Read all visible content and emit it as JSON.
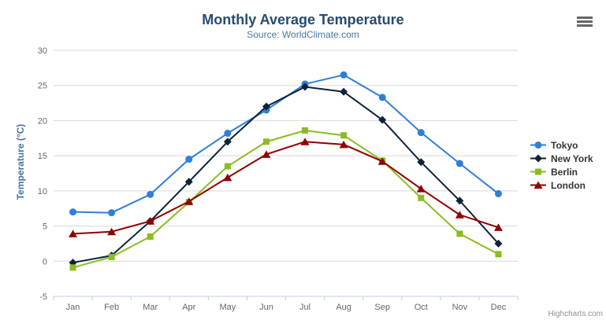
{
  "chart": {
    "title": "Monthly Average Temperature",
    "subtitle": "Source: WorldClimate.com",
    "credits": "Highcharts.com",
    "menu_icon": "hamburger-icon"
  },
  "colors": {
    "title": "#274b6d",
    "subtitle": "#4d759e",
    "yaxis_title": "#4572a7",
    "axis_labels": "#666666",
    "gridline": "#d8d8d8",
    "axis_line": "#c0d0e0",
    "legend_text": "#333333",
    "credits_text": "#909090",
    "menu_icon": "#666666"
  },
  "chart_data": {
    "type": "line",
    "title": "Monthly Average Temperature",
    "subtitle": "Source: WorldClimate.com",
    "xlabel": "",
    "ylabel": "Temperature (°C)",
    "ylim": [
      -5,
      30
    ],
    "yticks": [
      30,
      25,
      20,
      15,
      10,
      5,
      0,
      -5
    ],
    "grid": true,
    "legend_position": "right",
    "categories": [
      "Jan",
      "Feb",
      "Mar",
      "Apr",
      "May",
      "Jun",
      "Jul",
      "Aug",
      "Sep",
      "Oct",
      "Nov",
      "Dec"
    ],
    "series": [
      {
        "name": "Tokyo",
        "color": "#2f7ed8",
        "marker": "circle",
        "values": [
          7.0,
          6.9,
          9.5,
          14.5,
          18.2,
          21.5,
          25.2,
          26.5,
          23.3,
          18.3,
          13.9,
          9.6
        ]
      },
      {
        "name": "New York",
        "color": "#0d233a",
        "marker": "diamond",
        "values": [
          -0.2,
          0.8,
          5.7,
          11.3,
          17.0,
          22.0,
          24.8,
          24.1,
          20.1,
          14.1,
          8.6,
          2.5
        ]
      },
      {
        "name": "Berlin",
        "color": "#8bbc21",
        "marker": "square",
        "values": [
          -0.9,
          0.6,
          3.5,
          8.4,
          13.5,
          17.0,
          18.6,
          17.9,
          14.3,
          9.0,
          3.9,
          1.0
        ]
      },
      {
        "name": "London",
        "color": "#910000",
        "marker": "triangle",
        "values": [
          3.9,
          4.2,
          5.7,
          8.5,
          11.9,
          15.2,
          17.0,
          16.6,
          14.2,
          10.3,
          6.6,
          4.8
        ]
      }
    ]
  }
}
